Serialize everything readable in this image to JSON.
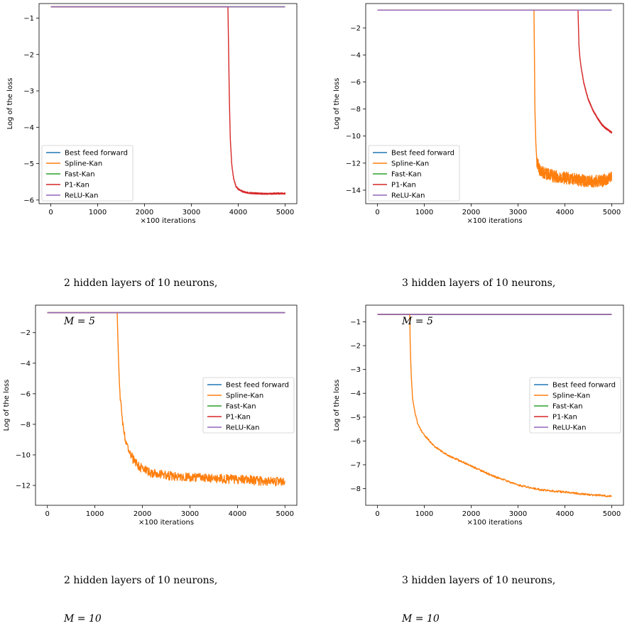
{
  "colors": {
    "Best feed forward": "#1f77b4",
    "Spline-Kan": "#ff7f0e",
    "Fast-Kan": "#2ca02c",
    "P1-Kan": "#d62728",
    "ReLU-Kan": "#9467bd"
  },
  "captions": [
    {
      "line1": "2 hidden layers of 10 neurons,",
      "line2": "M = 5"
    },
    {
      "line1": "3 hidden layers of 10 neurons,",
      "line2": "M = 5"
    },
    {
      "line1": "2 hidden layers of 10 neurons,",
      "line2": "M = 10"
    },
    {
      "line1": "3 hidden layers of 10 neurons,",
      "line2": "M = 10"
    }
  ],
  "chart_data": [
    {
      "type": "line",
      "xlabel": "×100 iterations",
      "ylabel": "Log of the loss",
      "xlim": [
        -250,
        5250
      ],
      "ylim": [
        -6.1,
        -0.6
      ],
      "xticks": [
        0,
        1000,
        2000,
        3000,
        4000,
        5000
      ],
      "yticks": [
        -1,
        -2,
        -3,
        -4,
        -5,
        -6
      ],
      "legend_position": "lower-left",
      "series": [
        {
          "name": "Best feed forward",
          "x": [
            0,
            5000
          ],
          "y": [
            -0.69,
            -0.69
          ]
        },
        {
          "name": "Spline-Kan",
          "x": [
            0,
            5000
          ],
          "y": [
            -0.69,
            -0.69
          ]
        },
        {
          "name": "Fast-Kan",
          "x": [
            0,
            5000
          ],
          "y": [
            -0.69,
            -0.69
          ]
        },
        {
          "name": "P1-Kan",
          "x": [
            0,
            3780,
            3790,
            3810,
            3830,
            3860,
            3900,
            3950,
            4000,
            4100,
            4200,
            4400,
            4600,
            4800,
            5000
          ],
          "y": [
            -0.69,
            -0.69,
            -1.5,
            -3.2,
            -4.3,
            -5.0,
            -5.4,
            -5.62,
            -5.7,
            -5.77,
            -5.8,
            -5.82,
            -5.83,
            -5.82,
            -5.82
          ],
          "noise": 0.02
        },
        {
          "name": "ReLU-Kan",
          "x": [
            0,
            5000
          ],
          "y": [
            -0.69,
            -0.69
          ]
        }
      ]
    },
    {
      "type": "line",
      "xlabel": "×100 iterations",
      "ylabel": "Log of the loss",
      "xlim": [
        -250,
        5250
      ],
      "ylim": [
        -15,
        -0.2
      ],
      "xticks": [
        0,
        1000,
        2000,
        3000,
        4000,
        5000
      ],
      "yticks": [
        -2,
        -4,
        -6,
        -8,
        -10,
        -12,
        -14
      ],
      "legend_position": "lower-left",
      "series": [
        {
          "name": "Best feed forward",
          "x": [
            0,
            5000
          ],
          "y": [
            -0.69,
            -0.69
          ]
        },
        {
          "name": "Spline-Kan",
          "x": [
            0,
            3340,
            3350,
            3360,
            3380,
            3400,
            3450,
            3500,
            3600,
            3800,
            4000,
            4200,
            4400,
            4600,
            4800,
            5000
          ],
          "y": [
            -0.69,
            -0.69,
            -4.0,
            -8.0,
            -10.5,
            -11.8,
            -12.4,
            -12.6,
            -12.8,
            -13.0,
            -13.1,
            -13.2,
            -13.3,
            -13.35,
            -13.3,
            -13.0
          ],
          "noise": 0.45
        },
        {
          "name": "Fast-Kan",
          "x": [
            0,
            5000
          ],
          "y": [
            -0.69,
            -0.69
          ]
        },
        {
          "name": "P1-Kan",
          "x": [
            0,
            4280,
            4290,
            4300,
            4320,
            4350,
            4400,
            4450,
            4500,
            4600,
            4700,
            4800,
            4900,
            5000
          ],
          "y": [
            -0.69,
            -0.69,
            -2.0,
            -3.3,
            -4.2,
            -5.0,
            -6.0,
            -6.7,
            -7.3,
            -8.1,
            -8.7,
            -9.2,
            -9.5,
            -9.75
          ],
          "noise": 0.06
        },
        {
          "name": "ReLU-Kan",
          "x": [
            0,
            5000
          ],
          "y": [
            -0.69,
            -0.69
          ]
        }
      ]
    },
    {
      "type": "line",
      "xlabel": "×100 iterations",
      "ylabel": "Log of the loss",
      "xlim": [
        -250,
        5250
      ],
      "ylim": [
        -13.3,
        -0.2
      ],
      "xticks": [
        0,
        1000,
        2000,
        3000,
        4000,
        5000
      ],
      "yticks": [
        -2,
        -4,
        -6,
        -8,
        -10,
        -12
      ],
      "legend_position": "center-right",
      "series": [
        {
          "name": "Best feed forward",
          "x": [
            0,
            5000
          ],
          "y": [
            -0.69,
            -0.69
          ]
        },
        {
          "name": "Spline-Kan",
          "x": [
            0,
            1470,
            1480,
            1500,
            1520,
            1560,
            1600,
            1700,
            1800,
            1900,
            2000,
            2200,
            2500,
            3000,
            3500,
            4000,
            4500,
            5000
          ],
          "y": [
            -0.69,
            -0.69,
            -2.0,
            -4.0,
            -5.6,
            -7.2,
            -8.4,
            -9.6,
            -10.3,
            -10.7,
            -10.9,
            -11.2,
            -11.35,
            -11.45,
            -11.55,
            -11.6,
            -11.7,
            -11.8
          ],
          "noise": 0.3
        },
        {
          "name": "Fast-Kan",
          "x": [
            0,
            5000
          ],
          "y": [
            -0.69,
            -0.69
          ]
        },
        {
          "name": "P1-Kan",
          "x": [
            0,
            5000
          ],
          "y": [
            -0.69,
            -0.69
          ]
        },
        {
          "name": "ReLU-Kan",
          "x": [
            0,
            5000
          ],
          "y": [
            -0.69,
            -0.69
          ]
        }
      ]
    },
    {
      "type": "line",
      "xlabel": "×100 iterations",
      "ylabel": "Log of the loss",
      "xlim": [
        -250,
        5250
      ],
      "ylim": [
        -8.7,
        -0.3
      ],
      "xticks": [
        0,
        1000,
        2000,
        3000,
        4000,
        5000
      ],
      "yticks": [
        -1,
        -2,
        -3,
        -4,
        -5,
        -6,
        -7,
        -8
      ],
      "legend_position": "center-right",
      "series": [
        {
          "name": "Best feed forward",
          "x": [
            0,
            5000
          ],
          "y": [
            -0.69,
            -0.69
          ]
        },
        {
          "name": "Spline-Kan",
          "x": [
            0,
            690,
            700,
            720,
            750,
            800,
            850,
            900,
            1000,
            1200,
            1500,
            2000,
            2500,
            3000,
            3500,
            4000,
            4500,
            5000
          ],
          "y": [
            -0.69,
            -0.69,
            -2.0,
            -3.2,
            -4.2,
            -4.8,
            -5.2,
            -5.45,
            -5.75,
            -6.2,
            -6.6,
            -7.05,
            -7.5,
            -7.85,
            -8.05,
            -8.15,
            -8.25,
            -8.32
          ],
          "noise": 0.04
        },
        {
          "name": "Fast-Kan",
          "x": [
            0,
            5000
          ],
          "y": [
            -0.69,
            -0.69
          ]
        },
        {
          "name": "P1-Kan",
          "x": [
            0,
            5000
          ],
          "y": [
            -0.69,
            -0.69
          ]
        },
        {
          "name": "ReLU-Kan",
          "x": [
            0,
            5000
          ],
          "y": [
            -0.69,
            -0.69
          ]
        }
      ]
    }
  ]
}
